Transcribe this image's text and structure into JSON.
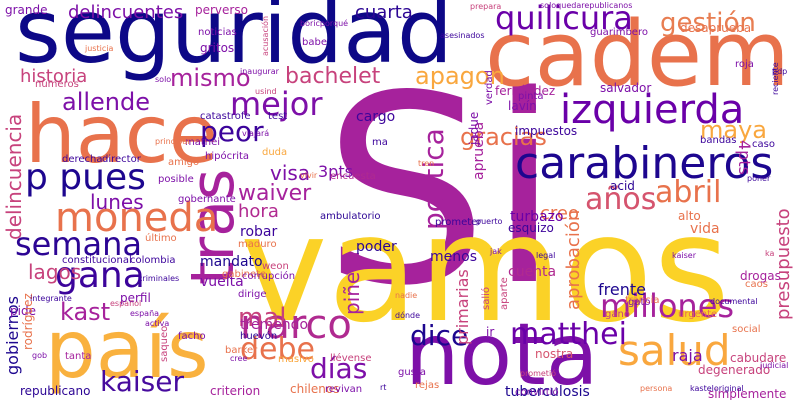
{
  "words": [
    {
      "text": "Si",
      "color": "#a6229c"
    },
    {
      "text": "vamos",
      "color": "#fbd227"
    },
    {
      "text": "seguridad",
      "color": "#0d0887"
    },
    {
      "text": "cadem",
      "color": "#e8724c"
    },
    {
      "text": "país",
      "color": "#f9b13e"
    },
    {
      "text": "hace",
      "color": "#e8724c"
    },
    {
      "text": "nota",
      "color": "#7d10a8"
    },
    {
      "text": "tras",
      "color": "#a6229c"
    },
    {
      "text": "carabineros",
      "color": "#1d068f"
    },
    {
      "text": "izquierda",
      "color": "#6a00a8"
    },
    {
      "text": "quilicura",
      "color": "#6a00a8"
    },
    {
      "text": "salud",
      "color": "#f9a73e"
    },
    {
      "text": "moneda",
      "color": "#e8724c"
    },
    {
      "text": "gana",
      "color": "#3c049b"
    },
    {
      "text": "semana",
      "color": "#2c0594"
    },
    {
      "text": "p pues",
      "color": "#1d068f"
    },
    {
      "text": "narco",
      "color": "#b02a90"
    },
    {
      "text": "kaiser",
      "color": "#470b9e"
    },
    {
      "text": "matthei",
      "color": "#6a00a8"
    },
    {
      "text": "millones",
      "color": "#a6229c"
    },
    {
      "text": "dice",
      "color": "#1d068f"
    },
    {
      "text": "mejor",
      "color": "#7d10a8"
    },
    {
      "text": "peor",
      "color": "#3c049b"
    },
    {
      "text": "abril",
      "color": "#e8724c"
    },
    {
      "text": "años",
      "color": "#d5546e"
    },
    {
      "text": "maya",
      "color": "#f9a73e"
    },
    {
      "text": "allende",
      "color": "#7d10a8"
    },
    {
      "text": "mismo",
      "color": "#a6229c"
    },
    {
      "text": "bachelet",
      "color": "#c7427c"
    },
    {
      "text": "gestión",
      "color": "#e87d51"
    },
    {
      "text": "apagon",
      "color": "#f9a73e"
    },
    {
      "text": "política",
      "color": "#a6229c"
    },
    {
      "text": "gracias",
      "color": "#e8724c"
    },
    {
      "text": "debe",
      "color": "#e8724c"
    },
    {
      "text": "días",
      "color": "#7d10a8"
    },
    {
      "text": "mal",
      "color": "#c7427c"
    },
    {
      "text": "kast",
      "color": "#a6229c"
    },
    {
      "text": "waiver",
      "color": "#a6229c"
    },
    {
      "text": "visa",
      "color": "#7d10a8"
    },
    {
      "text": "hora",
      "color": "#b12a90"
    },
    {
      "text": "lunes",
      "color": "#7d10a8"
    },
    {
      "text": "lagos",
      "color": "#c7427c"
    },
    {
      "text": "historia",
      "color": "#c7427c"
    },
    {
      "text": "delincuencia",
      "color": "#c7427c"
    },
    {
      "text": "delincuentes",
      "color": "#7d10a8"
    },
    {
      "text": "cuarta",
      "color": "#2c0594"
    },
    {
      "text": "gobiernos",
      "color": "#1d068f"
    },
    {
      "text": "piñera",
      "color": "#a6229c"
    },
    {
      "text": "primarias",
      "color": "#c7427c"
    },
    {
      "text": "aprobación",
      "color": "#e8724c"
    },
    {
      "text": "presupuesto",
      "color": "#c7427c"
    },
    {
      "text": "creo",
      "color": "#e8724c"
    },
    {
      "text": "vida",
      "color": "#e8724c"
    },
    {
      "text": "frente",
      "color": "#1d068f"
    },
    {
      "text": "raja",
      "color": "#7d10a8"
    },
    {
      "text": "cuenta",
      "color": "#b02a90"
    },
    {
      "text": "menos",
      "color": "#3c049b"
    },
    {
      "text": "poder",
      "color": "#2c0594"
    },
    {
      "text": "mandato",
      "color": "#1d068f"
    },
    {
      "text": "robar",
      "color": "#3c049b"
    },
    {
      "text": "vuelta",
      "color": "#7d10a8"
    },
    {
      "text": "tremendo",
      "color": "#a6229c"
    },
    {
      "text": "criterion",
      "color": "#a6229c"
    },
    {
      "text": "chilenos",
      "color": "#e8724c"
    },
    {
      "text": "nostra",
      "color": "#d5546e"
    },
    {
      "text": "tuberculosis",
      "color": "#1d068f"
    },
    {
      "text": "cabudare",
      "color": "#c7427c"
    },
    {
      "text": "degenerado",
      "color": "#c7427c"
    },
    {
      "text": "perfil",
      "color": "#7d10a8"
    },
    {
      "text": "pide",
      "color": "#7d10a8"
    },
    {
      "text": "cargo",
      "color": "#3c049b"
    },
    {
      "text": "aprueba",
      "color": "#a6229c"
    },
    {
      "text": "impuestos",
      "color": "#3c049b"
    },
    {
      "text": "fernández",
      "color": "#a6229c"
    },
    {
      "text": "salvador",
      "color": "#7d10a8"
    },
    {
      "text": "desaprueba",
      "color": "#e8724c"
    },
    {
      "text": "4pts",
      "color": "#a6229c"
    },
    {
      "text": "3pts",
      "color": "#7d10a8"
    },
    {
      "text": "acid",
      "color": "#2c0594"
    },
    {
      "text": "turbazo",
      "color": "#6a00a8"
    },
    {
      "text": "jadue",
      "color": "#7d10a8"
    },
    {
      "text": "lavín",
      "color": "#7d10a8"
    },
    {
      "text": "alto",
      "color": "#e8724c"
    },
    {
      "text": "esquizo",
      "color": "#3c049b"
    },
    {
      "text": "prometer",
      "color": "#3c049b"
    },
    {
      "text": "ir",
      "color": "#7d10a8"
    },
    {
      "text": "gritos",
      "color": "#7d10a8"
    },
    {
      "text": "grande",
      "color": "#7d10a8"
    },
    {
      "text": "perverso",
      "color": "#a6229c"
    },
    {
      "text": "encuesta",
      "color": "#b02a90"
    },
    {
      "text": "duda",
      "color": "#f9a73e"
    },
    {
      "text": "hipócrita",
      "color": "#7d10a8"
    },
    {
      "text": "ambulatorio",
      "color": "#2c0594"
    },
    {
      "text": "director",
      "color": "#3c049b"
    },
    {
      "text": "derecha",
      "color": "#3c049b"
    },
    {
      "text": "bandas",
      "color": "#3c049b"
    },
    {
      "text": "caso",
      "color": "#3c049b"
    },
    {
      "text": "roja",
      "color": "#7d10a8"
    },
    {
      "text": "pinta",
      "color": "#7d10a8"
    },
    {
      "text": "verdad",
      "color": "#7d10a8"
    },
    {
      "text": "mathei",
      "color": "#7d10a8"
    },
    {
      "text": "test",
      "color": "#3c049b"
    },
    {
      "text": "catastrofe",
      "color": "#3c049b"
    },
    {
      "text": "ma",
      "color": "#3c049b"
    },
    {
      "text": "guarimbero",
      "color": "#7d10a8"
    },
    {
      "text": "noticias",
      "color": "#7d10a8"
    },
    {
      "text": "babe",
      "color": "#7d10a8"
    },
    {
      "text": "gobernante",
      "color": "#7d10a8"
    },
    {
      "text": "gabinete",
      "color": "#e8724c"
    },
    {
      "text": "maduro",
      "color": "#e8724c"
    },
    {
      "text": "weon",
      "color": "#c7427c"
    },
    {
      "text": "dirige",
      "color": "#7d10a8"
    },
    {
      "text": "corrupción",
      "color": "#7d10a8"
    },
    {
      "text": "constitucional",
      "color": "#3c049b"
    },
    {
      "text": "colombia",
      "color": "#3c049b"
    },
    {
      "text": "último",
      "color": "#e8724c"
    },
    {
      "text": "huevón",
      "color": "#2c0594"
    },
    {
      "text": "barker",
      "color": "#e8724c"
    },
    {
      "text": "masivo",
      "color": "#f9a73e"
    },
    {
      "text": "llévense",
      "color": "#c7427c"
    },
    {
      "text": "revivan",
      "color": "#7d10a8"
    },
    {
      "text": "tanta",
      "color": "#a6229c"
    },
    {
      "text": "republicano",
      "color": "#2c0594"
    },
    {
      "text": "rodríguez",
      "color": "#e8724c"
    },
    {
      "text": "saqueo",
      "color": "#c7427c"
    },
    {
      "text": "facho",
      "color": "#7d10a8"
    },
    {
      "text": "gusta",
      "color": "#7d10a8"
    },
    {
      "text": "rejas",
      "color": "#e8724c"
    },
    {
      "text": "convirtió",
      "color": "#7d10a8"
    },
    {
      "text": "simplemente",
      "color": "#a6229c"
    },
    {
      "text": "social",
      "color": "#e8724c"
    },
    {
      "text": "urgente",
      "color": "#e8724c"
    },
    {
      "text": "gano",
      "color": "#c7427c"
    },
    {
      "text": "posible",
      "color": "#7d10a8"
    },
    {
      "text": "amigo",
      "color": "#e8724c"
    },
    {
      "text": "números",
      "color": "#c7427c"
    },
    {
      "text": "usind",
      "color": "#c7427c"
    },
    {
      "text": "principal",
      "color": "#e8724c"
    },
    {
      "text": "solo",
      "color": "#7d10a8"
    },
    {
      "text": "salió",
      "color": "#c7427c"
    },
    {
      "text": "aparte",
      "color": "#c7427c"
    },
    {
      "text": "francia",
      "color": "#e8724c"
    },
    {
      "text": "gato",
      "color": "#7d10a8"
    },
    {
      "text": "caos",
      "color": "#e8724c"
    },
    {
      "text": "drogas",
      "color": "#a6229c"
    },
    {
      "text": "documental",
      "color": "#3c049b"
    },
    {
      "text": "prepara",
      "color": "#c7427c"
    },
    {
      "text": "soloquedarepublicanos",
      "color": "#7d10a8"
    },
    {
      "text": "asesinados",
      "color": "#3c049b"
    },
    {
      "text": "boricporqué",
      "color": "#7d10a8"
    },
    {
      "text": "acusación",
      "color": "#c7427c"
    },
    {
      "text": "justicia",
      "color": "#e8724c"
    },
    {
      "text": "inaugurar",
      "color": "#7d10a8"
    },
    {
      "text": "viajará",
      "color": "#7d10a8"
    },
    {
      "text": "español",
      "color": "#c7427c"
    },
    {
      "text": "integrante",
      "color": "#3c049b"
    },
    {
      "text": "españa",
      "color": "#7d10a8"
    },
    {
      "text": "activa",
      "color": "#7d10a8"
    },
    {
      "text": "gob",
      "color": "#7d10a8"
    },
    {
      "text": "cree",
      "color": "#7d10a8"
    },
    {
      "text": "dónde",
      "color": "#3c049b"
    },
    {
      "text": "nadie",
      "color": "#e8724c"
    },
    {
      "text": "legal",
      "color": "#3c049b"
    },
    {
      "text": "kaiser",
      "color": "#7d10a8"
    },
    {
      "text": "judicial",
      "color": "#7d10a8"
    },
    {
      "text": "kasteloriginal",
      "color": "#3c049b"
    },
    {
      "text": "persona",
      "color": "#e8724c"
    },
    {
      "text": "prometió",
      "color": "#c7427c"
    },
    {
      "text": "criminales",
      "color": "#3c049b"
    },
    {
      "text": "vivir",
      "color": "#e8724c"
    },
    {
      "text": "rt",
      "color": "#3c049b"
    },
    {
      "text": "tren",
      "color": "#e8724c"
    },
    {
      "text": "reciente",
      "color": "#3c049b"
    },
    {
      "text": "puerto",
      "color": "#3c049b"
    },
    {
      "text": "poner",
      "color": "#3c049b"
    },
    {
      "text": "ka",
      "color": "#c7427c"
    },
    {
      "text": "pdp",
      "color": "#3c049b"
    },
    {
      "text": "jak",
      "color": "#7d10a8"
    }
  ]
}
